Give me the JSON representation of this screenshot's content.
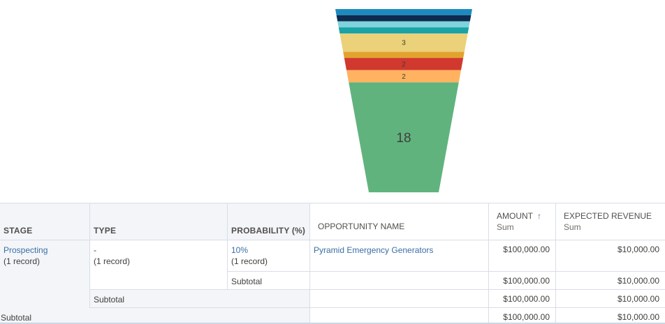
{
  "chart_data": {
    "type": "funnel",
    "segments": [
      {
        "value": 1,
        "color": "#1b8bbf",
        "label": ""
      },
      {
        "value": 1,
        "color": "#0e2a4f",
        "label": ""
      },
      {
        "value": 1,
        "color": "#7fd3dd",
        "label": ""
      },
      {
        "value": 1,
        "color": "#1aa3a6",
        "label": ""
      },
      {
        "value": 3,
        "color": "#ead17a",
        "label": "3"
      },
      {
        "value": 1,
        "color": "#e2a32e",
        "label": ""
      },
      {
        "value": 2,
        "color": "#d1382e",
        "label": "2"
      },
      {
        "value": 2,
        "color": "#ffb361",
        "label": "2"
      },
      {
        "value": 18,
        "color": "#61b37e",
        "label": "18"
      }
    ]
  },
  "table": {
    "headers": {
      "stage": "STAGE",
      "type": "TYPE",
      "probability": "PROBABILITY (%)",
      "opportunity": "OPPORTUNITY NAME",
      "amount": "AMOUNT",
      "amount_sub": "Sum",
      "amount_sort_icon": "↑",
      "revenue": "EXPECTED REVENUE",
      "revenue_sub": "Sum"
    },
    "group": {
      "stage": "Prospecting",
      "stage_count": "(1 record)",
      "type": "-",
      "type_count": "(1 record)",
      "probability": "10%",
      "probability_count": "(1 record)"
    },
    "row": {
      "opportunity": "Pyramid Emergency Generators",
      "amount": "$100,000.00",
      "revenue": "$10,000.00"
    },
    "subtotal_probability": {
      "label": "Subtotal",
      "amount": "$100,000.00",
      "revenue": "$10,000.00"
    },
    "subtotal_type": {
      "label": "Subtotal",
      "amount": "$100,000.00",
      "revenue": "$10,000.00"
    },
    "subtotal_stage": {
      "label": "Subtotal",
      "amount": "$100,000.00",
      "revenue": "$10,000.00"
    }
  }
}
